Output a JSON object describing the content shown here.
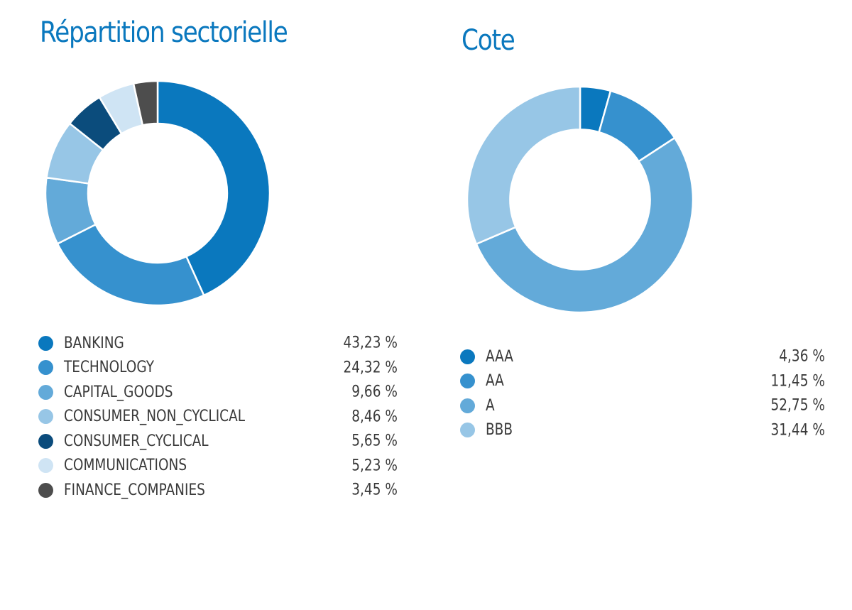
{
  "chart_data": [
    {
      "type": "pie",
      "title": "Répartition sectorielle",
      "categories": [
        "BANKING",
        "TECHNOLOGY",
        "CAPITAL_GOODS",
        "CONSUMER_NON_CYCLICAL",
        "CONSUMER_CYCLICAL",
        "COMMUNICATIONS",
        "FINANCE_COMPANIES"
      ],
      "values": [
        43.23,
        24.32,
        9.66,
        8.46,
        5.65,
        5.23,
        3.45
      ],
      "value_labels": [
        "43,23 %",
        "24,32 %",
        "9,66 %",
        "8,46 %",
        "5,65 %",
        "5,23 %",
        "3,45 %"
      ],
      "colors": [
        "#0a78be",
        "#3691ce",
        "#63aad9",
        "#97c6e6",
        "#0b4c7c",
        "#cfe4f4",
        "#4d4d4d"
      ],
      "donut": true,
      "legend_position": "bottom"
    },
    {
      "type": "pie",
      "title": "Cote",
      "categories": [
        "AAA",
        "AA",
        "A",
        "BBB"
      ],
      "values": [
        4.36,
        11.45,
        52.75,
        31.44
      ],
      "value_labels": [
        "4,36 %",
        "11,45 %",
        "52,75 %",
        "31,44 %"
      ],
      "colors": [
        "#0a78be",
        "#3691ce",
        "#63aad9",
        "#97c6e6"
      ],
      "donut": true,
      "legend_position": "bottom"
    }
  ]
}
